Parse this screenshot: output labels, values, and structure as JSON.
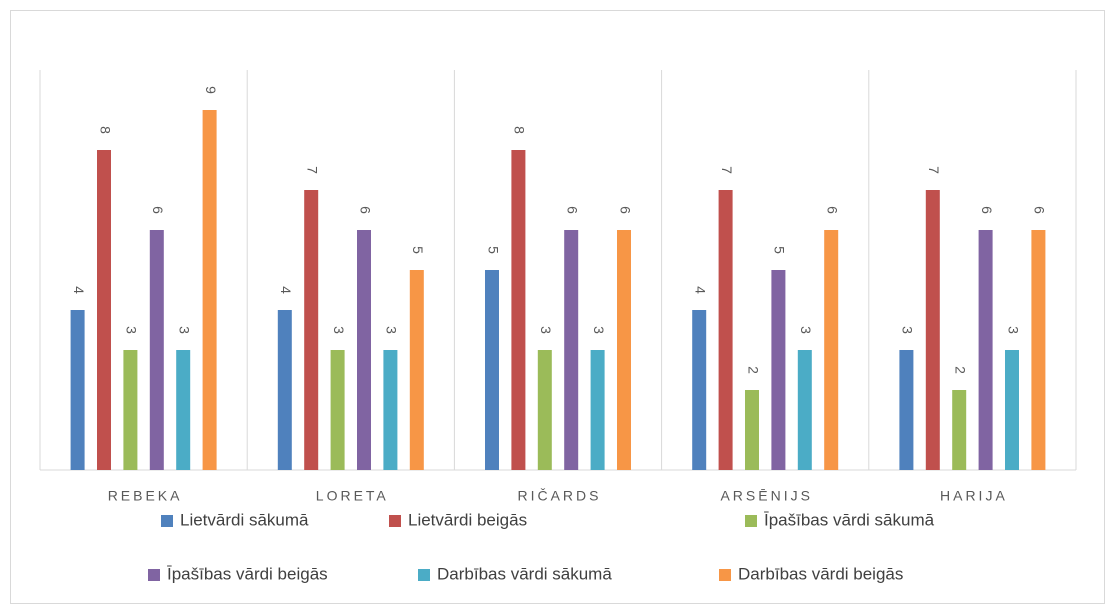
{
  "chart_data": {
    "type": "bar",
    "categories": [
      "REBEKA",
      "LORETA",
      "RIČARDS",
      "ARSĒNIJS",
      "HARIJA"
    ],
    "series": [
      {
        "name": "Lietvārdi sākumā",
        "color": "#4f81bd",
        "values": [
          4,
          4,
          5,
          4,
          3
        ]
      },
      {
        "name": "Lietvārdi beigās",
        "color": "#c0504d",
        "values": [
          8,
          7,
          8,
          7,
          7
        ]
      },
      {
        "name": "Īpašības vārdi sākumā",
        "color": "#9bbb59",
        "values": [
          3,
          3,
          3,
          2,
          2
        ]
      },
      {
        "name": "Īpašības vārdi beigās",
        "color": "#8064a2",
        "values": [
          6,
          6,
          6,
          5,
          6
        ]
      },
      {
        "name": "Darbības vārdi sākumā",
        "color": "#4bacc6",
        "values": [
          3,
          3,
          3,
          3,
          3
        ]
      },
      {
        "name": "Darbības vārdi beigās",
        "color": "#f79646",
        "values": [
          9,
          5,
          6,
          6,
          6
        ]
      }
    ],
    "ylim": [
      0,
      10
    ],
    "legend": "bottom"
  }
}
